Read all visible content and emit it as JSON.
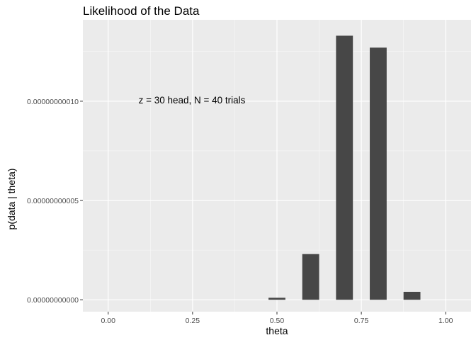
{
  "chart_data": {
    "type": "bar",
    "title": "Likelihood of the Data",
    "xlabel": "theta",
    "ylabel": "p(data | theta)",
    "annotation": "z = 30 head, N = 40 trials",
    "x": [
      0.0,
      0.1,
      0.2,
      0.3,
      0.4,
      0.5,
      0.6,
      0.7,
      0.8,
      0.9,
      1.0
    ],
    "values": [
      0,
      0,
      0,
      0,
      0,
      1e-12,
      2.3e-11,
      1.33e-10,
      1.27e-10,
      4e-12,
      0
    ],
    "xlim": [
      -0.075,
      1.075
    ],
    "ylim": [
      -6e-12,
      1.41e-10
    ],
    "x_ticks": [
      0.0,
      0.25,
      0.5,
      0.75,
      1.0
    ],
    "x_tick_labels": [
      "0.00",
      "0.25",
      "0.50",
      "0.75",
      "1.00"
    ],
    "y_ticks": [
      0,
      5e-11,
      1e-10
    ],
    "y_tick_labels": [
      "0.00000000000",
      "0.00000000005",
      "0.00000000010"
    ],
    "grid": true,
    "bar_color": "#474747",
    "panel_color": "#ebebeb"
  }
}
